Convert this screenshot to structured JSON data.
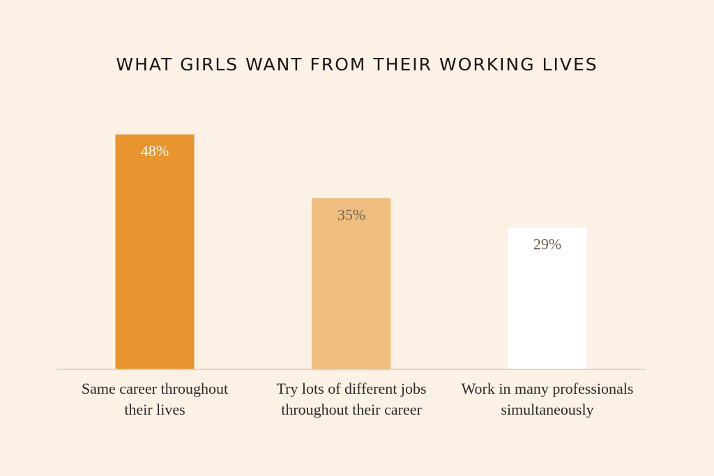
{
  "chart_data": {
    "type": "bar",
    "title": "WHAT GIRLS WANT FROM THEIR WORKING LIVES",
    "categories": [
      [
        "Same career throughout",
        "their lives"
      ],
      [
        "Try lots of different jobs",
        "throughout their career"
      ],
      [
        "Work in many professionals",
        "simultaneously"
      ]
    ],
    "values": [
      48,
      35,
      29
    ],
    "value_labels": [
      "48%",
      "35%",
      "29%"
    ],
    "bar_colors": [
      "#e8952f",
      "#efbd7e",
      "#ffffff"
    ],
    "value_label_colors": [
      "#ffffff",
      "#6e6355",
      "#6e6355"
    ],
    "axis_color": "#d4cbc0",
    "ylim": [
      0,
      48
    ],
    "grid": false,
    "legend": "none"
  }
}
